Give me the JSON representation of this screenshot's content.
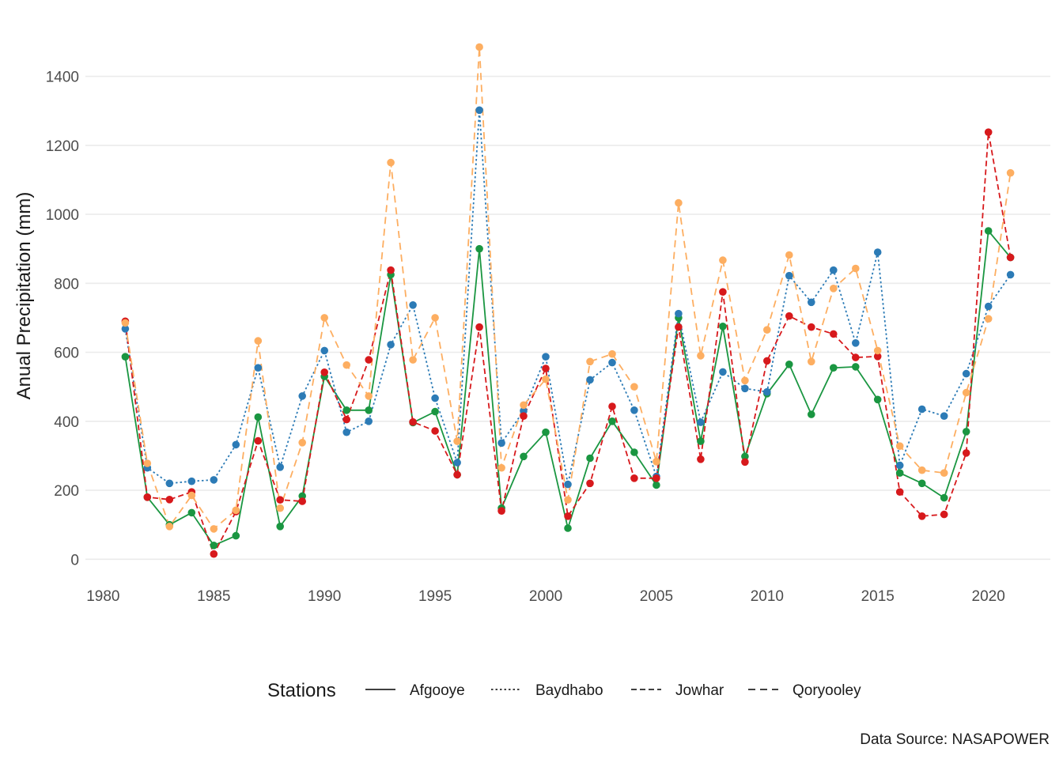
{
  "chart_data": {
    "type": "line",
    "title": "",
    "xlabel": "",
    "ylabel": "Anual Precipitation (mm)",
    "caption": "Data Source: NASAPOWER",
    "xlim": [
      1979.2,
      2022.8
    ],
    "ylim": [
      -75,
      1525
    ],
    "x_ticks": [
      1980,
      1985,
      1990,
      1995,
      2000,
      2005,
      2010,
      2015,
      2020
    ],
    "y_ticks": [
      0,
      200,
      400,
      600,
      800,
      1000,
      1200,
      1400
    ],
    "grid": true,
    "legend": {
      "title": "Stations",
      "position": "bottom"
    },
    "x": [
      1981,
      1982,
      1983,
      1984,
      1985,
      1986,
      1987,
      1988,
      1989,
      1990,
      1991,
      1992,
      1993,
      1994,
      1995,
      1996,
      1997,
      1998,
      1999,
      2000,
      2001,
      2002,
      2003,
      2004,
      2005,
      2006,
      2007,
      2008,
      2009,
      2010,
      2011,
      2012,
      2013,
      2014,
      2015,
      2016,
      2017,
      2018,
      2019,
      2020,
      2021
    ],
    "series": [
      {
        "name": "Afgooye",
        "color": "#1a9641",
        "dash": "solid",
        "values": [
          587,
          180,
          100,
          135,
          40,
          68,
          412,
          95,
          183,
          530,
          432,
          432,
          825,
          396,
          428,
          245,
          900,
          148,
          298,
          368,
          90,
          293,
          400,
          310,
          215,
          700,
          342,
          675,
          298,
          480,
          565,
          420,
          555,
          558,
          463,
          250,
          220,
          178,
          370,
          952,
          875
        ]
      },
      {
        "name": "Baydhabo",
        "color": "#2c7bb6",
        "dash": "dotted",
        "values": [
          668,
          265,
          220,
          226,
          230,
          332,
          555,
          267,
          473,
          605,
          368,
          400,
          622,
          737,
          467,
          280,
          1302,
          337,
          430,
          587,
          217,
          520,
          570,
          432,
          240,
          712,
          397,
          543,
          495,
          485,
          822,
          745,
          838,
          627,
          890,
          272,
          435,
          415,
          538,
          733,
          825
        ]
      },
      {
        "name": "Jowhar",
        "color": "#d7191c",
        "dash": "dashed",
        "values": [
          690,
          180,
          173,
          195,
          15,
          138,
          343,
          172,
          168,
          542,
          405,
          578,
          838,
          398,
          372,
          245,
          673,
          140,
          415,
          553,
          125,
          220,
          443,
          235,
          235,
          673,
          290,
          775,
          282,
          575,
          705,
          673,
          653,
          585,
          588,
          195,
          125,
          130,
          308,
          1238,
          875
        ]
      },
      {
        "name": "Qoryooley",
        "color": "#fdae61",
        "dash": "longdash",
        "values": [
          685,
          278,
          95,
          185,
          88,
          142,
          633,
          148,
          338,
          700,
          563,
          473,
          1150,
          578,
          700,
          342,
          1485,
          265,
          447,
          522,
          172,
          573,
          595,
          500,
          283,
          1033,
          590,
          867,
          518,
          665,
          882,
          573,
          785,
          843,
          605,
          328,
          258,
          250,
          483,
          697,
          1120
        ]
      }
    ]
  }
}
